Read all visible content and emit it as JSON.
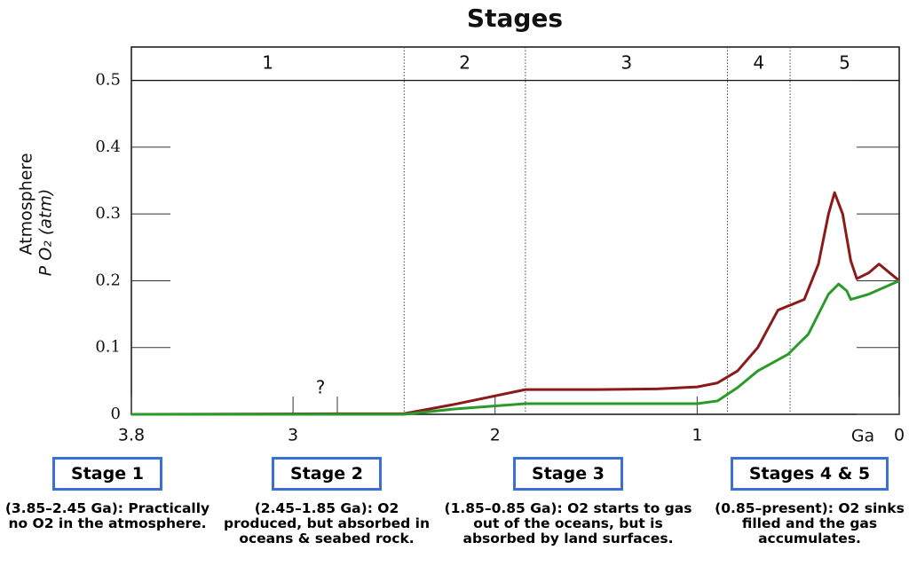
{
  "chart_data": {
    "type": "line",
    "title": "Stages",
    "y_label": [
      "Atmosphere",
      "P O₂ (atm)"
    ],
    "x_label": "Ga",
    "xlim": [
      3.8,
      0
    ],
    "xticks": [
      3.8,
      3,
      2,
      1,
      0
    ],
    "ylim": [
      0,
      0.55
    ],
    "yticks": [
      0,
      0.1,
      0.2,
      0.3,
      0.4,
      0.5
    ],
    "stage_labels": [
      "1",
      "2",
      "3",
      "4",
      "5"
    ],
    "stage_boundaries": [
      2.45,
      1.85,
      0.85,
      0.54
    ],
    "annotation": "?",
    "series": [
      {
        "color": "#8b1a1a",
        "x": [
          3.8,
          2.45,
          2.2,
          1.85,
          1.5,
          1.2,
          1.0,
          0.9,
          0.8,
          0.7,
          0.6,
          0.47,
          0.4,
          0.35,
          0.32,
          0.28,
          0.24,
          0.21,
          0.15,
          0.1,
          0.06,
          0
        ],
        "values": [
          0,
          0.001,
          0.015,
          0.037,
          0.037,
          0.038,
          0.041,
          0.047,
          0.065,
          0.1,
          0.156,
          0.172,
          0.225,
          0.3,
          0.332,
          0.3,
          0.23,
          0.203,
          0.212,
          0.225,
          0.215,
          0.2
        ]
      },
      {
        "color": "#2a9a2a",
        "x": [
          3.8,
          2.45,
          2.2,
          1.85,
          1.5,
          1.0,
          0.9,
          0.8,
          0.7,
          0.55,
          0.45,
          0.35,
          0.3,
          0.26,
          0.24,
          0.15,
          0
        ],
        "values": [
          0,
          0,
          0.008,
          0.016,
          0.016,
          0.016,
          0.02,
          0.04,
          0.065,
          0.09,
          0.12,
          0.18,
          0.195,
          0.185,
          0.172,
          0.18,
          0.2
        ]
      }
    ]
  },
  "notes": [
    {
      "title": "Stage 1",
      "text": "(3.85–2.45 Ga): Practically no O2 in the atmosphere."
    },
    {
      "title": "Stage 2",
      "text": "(2.45–1.85 Ga): O2 produced, but absorbed in oceans & seabed rock."
    },
    {
      "title": "Stage 3",
      "text": "(1.85–0.85 Ga): O2 starts to gas out of the oceans, but is absorbed by land surfaces."
    },
    {
      "title": "Stages 4 & 5",
      "text": "(0.85–present): O2 sinks filled and the gas accumulates."
    }
  ]
}
